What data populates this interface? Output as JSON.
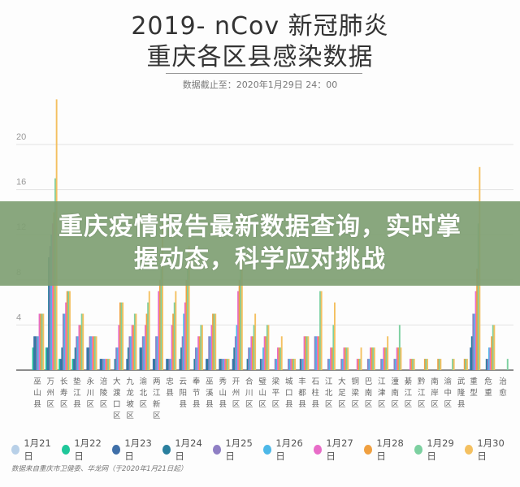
{
  "header": {
    "title_line1": "2019- nCov 新冠肺炎",
    "title_line2": "重庆各区县感染数据",
    "as_of": "数据截止至：2020年1月29日 24：00"
  },
  "banner": {
    "line1": "重庆疫情报告最新数据查询，实时掌",
    "line2": "握动态，科学应对挑战"
  },
  "footer": {
    "source": "数据来自重庆市卫健委、华龙网（于2020年1月21日起）"
  },
  "chart_data": {
    "type": "bar",
    "title": "2019- nCov 新冠肺炎 重庆各区县感染数据",
    "subtitle": "数据截止至：2020年1月29日 24：00",
    "xlabel": "",
    "ylabel": "",
    "ylim": [
      0,
      24
    ],
    "yticks": [
      4,
      8,
      12,
      16,
      20
    ],
    "grid": true,
    "legend_position": "bottom",
    "categories": [
      "巫山县",
      "万州区",
      "长寿区",
      "垫江县",
      "永川区",
      "涪陵区",
      "大渡口区",
      "九龙坡区",
      "渝北区",
      "两江新区",
      "忠县",
      "云阳县",
      "奉节县",
      "巫溪县",
      "秀山县",
      "开州区",
      "合川区",
      "璧山区",
      "梁平区",
      "城口县",
      "丰都县",
      "石柱县",
      "江北区",
      "大足区",
      "铜梁区",
      "巴南区",
      "江津区",
      "潼南区",
      "綦江区",
      "黔江区",
      "南岸区",
      "渝中区",
      "武隆县",
      "重型",
      "危重",
      "治愈"
    ],
    "series": [
      {
        "name": "1月21日",
        "color": "#b8d0e8",
        "values": [
          0,
          0,
          0,
          0,
          0,
          0,
          0,
          0,
          0,
          0,
          0,
          0,
          0,
          0,
          0,
          0,
          0,
          0,
          0,
          0,
          0,
          0,
          0,
          0,
          0,
          0,
          0,
          0,
          0,
          0,
          0,
          0,
          0,
          0,
          0,
          0
        ]
      },
      {
        "name": "1月22日",
        "color": "#1fc79a",
        "values": [
          2,
          2,
          1,
          1,
          0,
          0,
          0,
          0,
          0,
          0,
          0,
          0,
          0,
          0,
          0,
          0,
          0,
          0,
          0,
          0,
          0,
          0,
          0,
          0,
          0,
          0,
          0,
          0,
          0,
          0,
          0,
          0,
          0,
          0,
          0,
          0
        ]
      },
      {
        "name": "1月23日",
        "color": "#3f6fa8",
        "values": [
          3,
          2,
          1,
          1,
          2,
          1,
          0,
          1,
          2,
          1,
          1,
          1,
          0,
          1,
          1,
          1,
          0,
          0,
          0,
          0,
          0,
          0,
          0,
          0,
          0,
          0,
          0,
          0,
          0,
          0,
          0,
          0,
          0,
          2,
          0,
          0
        ]
      },
      {
        "name": "1月24日",
        "color": "#2a7f9e",
        "values": [
          3,
          10,
          2,
          2,
          2,
          1,
          1,
          2,
          2,
          1,
          1,
          2,
          1,
          1,
          1,
          2,
          1,
          1,
          0,
          0,
          1,
          0,
          0,
          0,
          0,
          0,
          0,
          0,
          0,
          0,
          0,
          0,
          0,
          3,
          1,
          0
        ]
      },
      {
        "name": "1月25日",
        "color": "#8f7fc4",
        "values": [
          3,
          11,
          5,
          3,
          3,
          1,
          2,
          3,
          3,
          3,
          1,
          3,
          2,
          3,
          1,
          3,
          2,
          1,
          1,
          1,
          1,
          3,
          1,
          1,
          0,
          1,
          1,
          1,
          0,
          0,
          0,
          0,
          0,
          5,
          1,
          0
        ]
      },
      {
        "name": "1月26日",
        "color": "#4db8e8",
        "values": [
          3,
          12,
          5,
          3,
          3,
          1,
          2,
          3,
          3,
          3,
          1,
          5,
          2,
          3,
          1,
          4,
          2,
          2,
          1,
          1,
          1,
          3,
          1,
          1,
          0,
          1,
          1,
          1,
          0,
          0,
          0,
          0,
          0,
          5,
          2,
          0
        ]
      },
      {
        "name": "1月27日",
        "color": "#e86cc8",
        "values": [
          5,
          13,
          6,
          4,
          3,
          1,
          4,
          4,
          4,
          7,
          4,
          6,
          3,
          4,
          1,
          7,
          3,
          3,
          2,
          1,
          3,
          3,
          2,
          2,
          1,
          2,
          2,
          2,
          1,
          0,
          0,
          0,
          0,
          7,
          2,
          0
        ]
      },
      {
        "name": "1月28日",
        "color": "#f0a040",
        "values": [
          5,
          14,
          7,
          4,
          3,
          1,
          6,
          4,
          5,
          8,
          5,
          8,
          3,
          5,
          1,
          8,
          3,
          3,
          2,
          1,
          3,
          3,
          2,
          2,
          1,
          2,
          2,
          2,
          1,
          1,
          1,
          0,
          1,
          9,
          3,
          0
        ]
      },
      {
        "name": "1月29日",
        "color": "#7cd0a0",
        "values": [
          5,
          17,
          7,
          5,
          3,
          1,
          6,
          5,
          6,
          9,
          6,
          9,
          4,
          5,
          1,
          9,
          4,
          4,
          2,
          1,
          3,
          7,
          4,
          2,
          1,
          2,
          2,
          4,
          1,
          1,
          1,
          1,
          1,
          13,
          4,
          1
        ]
      },
      {
        "name": "1月30日",
        "color": "#f4c060",
        "values": [
          5,
          24,
          7,
          5,
          3,
          1,
          6,
          5,
          7,
          13,
          7,
          11,
          4,
          5,
          1,
          10,
          5,
          4,
          3,
          1,
          3,
          7,
          6,
          2,
          2,
          2,
          3,
          2,
          1,
          1,
          1,
          1,
          1,
          18,
          4,
          0
        ]
      }
    ]
  }
}
